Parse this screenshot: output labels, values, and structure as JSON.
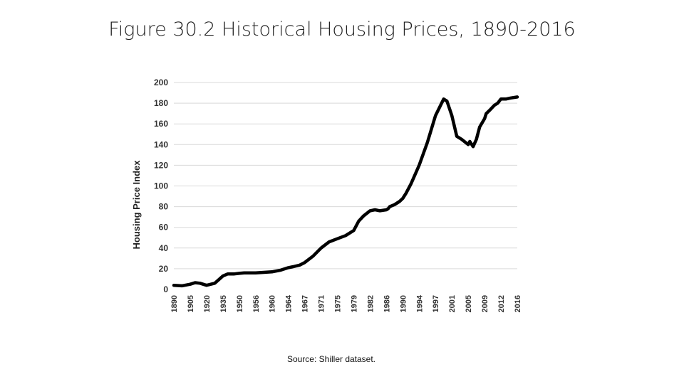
{
  "slide": {
    "title": "Figure 30.2 Historical Housing Prices, 1890-2016",
    "source": "Source: Shiller dataset."
  },
  "chart_data": {
    "type": "line",
    "title": "Figure 30.2 Historical Housing Prices, 1890-2016",
    "xlabel": "",
    "ylabel": "Housing Price Index",
    "ylim": [
      0,
      200
    ],
    "yticks": [
      0,
      20,
      40,
      60,
      80,
      100,
      120,
      140,
      160,
      180,
      200
    ],
    "grid": "horizontal",
    "line_color": "#000000",
    "categories": [
      "1890",
      "1905",
      "1920",
      "1935",
      "1950",
      "1956",
      "1960",
      "1964",
      "1967",
      "1971",
      "1975",
      "1979",
      "1982",
      "1986",
      "1990",
      "1994",
      "1997",
      "2001",
      "2005",
      "2009",
      "2012",
      "2016"
    ],
    "series": [
      {
        "name": "Housing Price Index",
        "x": [
          0,
          0.5,
          1,
          1.3,
          1.6,
          2,
          2.5,
          3,
          3.3,
          3.7,
          4,
          4.3,
          4.7,
          5,
          5.5,
          6,
          6.5,
          7,
          7.3,
          7.7,
          8,
          8.5,
          9,
          9.5,
          10,
          10.5,
          11,
          11.3,
          11.6,
          12,
          12.3,
          12.6,
          13,
          13.1,
          13.2,
          13.5,
          13.8,
          14,
          14.2,
          14.5,
          15,
          15.5,
          16,
          16.5,
          16.7,
          17,
          17.3,
          17.6,
          18,
          18.1,
          18.3,
          18.5,
          18.7,
          19,
          19.1,
          19.3,
          19.6,
          19.8,
          20,
          20.3,
          20.6,
          21
        ],
        "values": [
          4,
          3.5,
          5,
          6.5,
          6,
          4,
          6,
          13,
          15,
          15,
          15.5,
          16,
          16,
          16,
          16.5,
          17,
          18.5,
          21,
          22,
          23.5,
          26,
          32,
          40,
          46,
          49,
          52,
          57,
          66,
          71,
          76,
          77,
          76,
          77,
          78,
          80,
          82,
          85,
          88,
          93,
          102,
          120,
          142,
          168,
          184,
          182,
          168,
          148,
          145,
          140,
          143,
          138,
          145,
          157,
          165,
          170,
          173,
          178,
          180,
          184,
          184,
          185,
          186
        ]
      }
    ]
  }
}
